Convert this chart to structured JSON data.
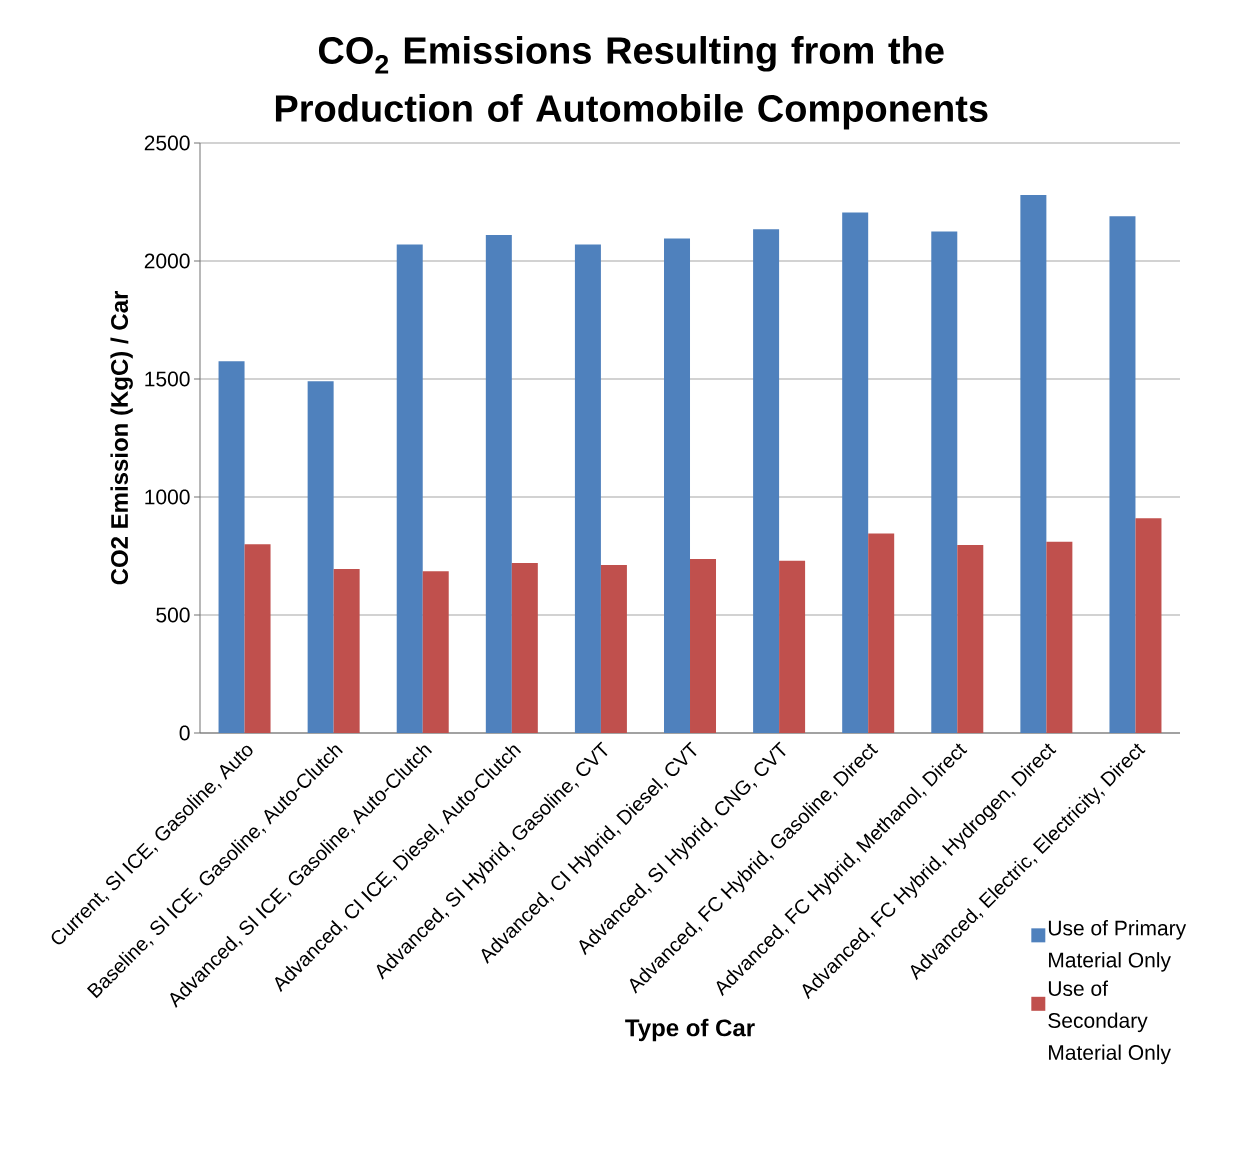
{
  "chart_data": {
    "type": "bar",
    "title": "CO$_{2}$ Emissions Resulting from the Production of Automobile Components",
    "xlabel": "Type of Car",
    "ylabel": "CO2 Emission (KgC) / Car",
    "categories": [
      "Current, SI ICE, Gasoline, Auto",
      "Baseline, SI ICE, Gasoline, Auto-Clutch",
      "Advanced, SI ICE, Gasoline, Auto-Clutch",
      "Advanced, CI ICE, Diesel, Auto-Clutch",
      "Advanced, SI Hybrid, Gasoline, CVT",
      "Advanced, CI Hybrid, Diesel, CVT",
      "Advanced, SI Hybrid, CNG, CVT",
      "Advanced, FC Hybrid, Gasoline, Direct",
      "Advanced, FC Hybrid, Methanol, Direct",
      "Advanced, FC Hybrid, Hydrogen, Direct",
      "Advanced, Electric, Electricity, Direct"
    ],
    "series": [
      {
        "name": "Use of Primary Material Only",
        "color": "#4f81bd",
        "values": [
          1575,
          1490,
          2070,
          2110,
          2070,
          2095,
          2135,
          2205,
          2125,
          2280,
          2190
        ]
      },
      {
        "name": "Use of Secondary Material Only",
        "color": "#c0504d",
        "values": [
          800,
          695,
          685,
          720,
          712,
          737,
          730,
          845,
          797,
          810,
          910
        ]
      }
    ],
    "ylim": [
      0,
      2500
    ],
    "yticks": [
      0,
      500,
      1000,
      1500,
      2000,
      2500
    ],
    "grid": "y",
    "legend": "bottom right"
  }
}
